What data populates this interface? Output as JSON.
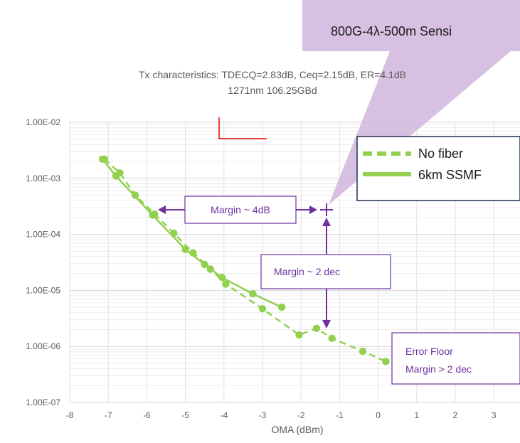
{
  "chart_data": {
    "type": "scatter",
    "title": "Tx characteristics: TDECQ=2.83dB, Ceq=2.15dB, ER=4.1dB",
    "subtitle": "1271nm  106.25GBd",
    "xlabel": "OMA (dBm)",
    "ylabel": "",
    "xlim": [
      -8,
      3.5
    ],
    "ylim": [
      1e-07,
      0.01
    ],
    "yscale": "log",
    "x_ticks": [
      "-8",
      "-7",
      "-6",
      "-5",
      "-4",
      "-3",
      "-2",
      "-1",
      "0",
      "1",
      "2",
      "3"
    ],
    "y_ticks": [
      "1.00E-02",
      "1.00E-03",
      "1.00E-04",
      "1.00E-05",
      "1.00E-06",
      "1.00E-07"
    ],
    "grid": true,
    "legend_position": "top-right",
    "series": [
      {
        "name": "No fiber",
        "style": "dashed",
        "color": "#92d050",
        "x": [
          -7.1,
          -6.7,
          -6.3,
          -5.8,
          -5.3,
          -4.8,
          -4.35,
          -3.95,
          -3.0,
          -2.05,
          -1.6,
          -1.2,
          -0.4,
          0.2
        ],
        "y": [
          0.0022,
          0.00125,
          0.0005,
          0.00023,
          0.000105,
          4.7e-05,
          2.4e-05,
          1.3e-05,
          4.7e-06,
          1.6e-06,
          2.1e-06,
          1.4e-06,
          8.2e-07,
          5.4e-07
        ]
      },
      {
        "name": "6km SSMF",
        "style": "solid",
        "color": "#92d050",
        "x": [
          -7.15,
          -6.8,
          -5.85,
          -5.0,
          -4.5,
          -4.05,
          -3.25,
          -2.5
        ],
        "y": [
          0.0022,
          0.0011,
          0.00022,
          5.4e-05,
          2.9e-05,
          1.7e-05,
          8.7e-06,
          5e-06
        ]
      }
    ],
    "target_point": {
      "x": -1.25,
      "y": 0.00022
    },
    "annotations": {
      "callout": "800G-4λ-500m Sensi",
      "margin_power": "Margin ~ 4dB",
      "margin_ber": "Margin ~ 2 dec",
      "error_floor_line1": "Error Floor",
      "error_floor_line2": "Margin > 2 dec"
    },
    "colors": {
      "series": "#92d050",
      "annotation": "#7030a0",
      "callout_fill": "#d4b9e0",
      "legend_border": "#1f3050",
      "text": "#595959"
    }
  }
}
